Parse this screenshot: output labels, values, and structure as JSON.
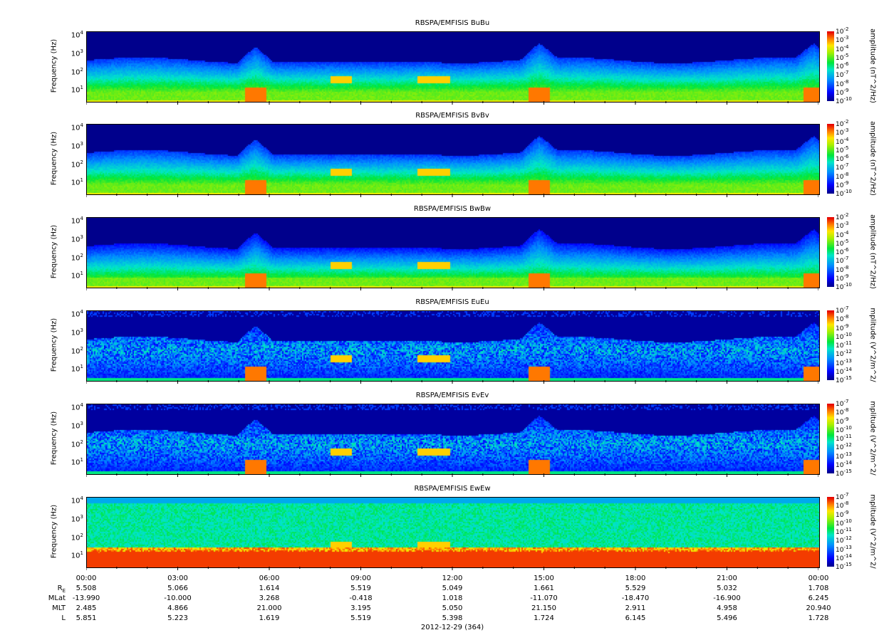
{
  "panels": [
    {
      "title": "RBSPA/EMFISIS  BuBu",
      "ylabel": "Frequency (Hz)",
      "cbar_label": "amplitude (nT^2/Hz)",
      "cbar_ticks": [
        "-2",
        "-3",
        "-4",
        "-5",
        "-6",
        "-7",
        "-8",
        "-9",
        "-10"
      ],
      "kind": "B"
    },
    {
      "title": "RBSPA/EMFISIS  BvBv",
      "ylabel": "Frequency (Hz)",
      "cbar_label": "amplitude (nT^2/Hz)",
      "cbar_ticks": [
        "-2",
        "-3",
        "-4",
        "-5",
        "-6",
        "-7",
        "-8",
        "-9",
        "-10"
      ],
      "kind": "B"
    },
    {
      "title": "RBSPA/EMFISIS  BwBw",
      "ylabel": "Frequency (Hz)",
      "cbar_label": "amplitude (nT^2/Hz)",
      "cbar_ticks": [
        "-2",
        "-3",
        "-4",
        "-5",
        "-6",
        "-7",
        "-8",
        "-9",
        "-10"
      ],
      "kind": "Bw"
    },
    {
      "title": "RBSPA/EMFISIS  EuEu",
      "ylabel": "Frequency (Hz)",
      "cbar_label": "mplitude (V^2/m^2/",
      "cbar_ticks": [
        "-7",
        "-8",
        "-9",
        "-10",
        "-11",
        "-12",
        "-13",
        "-14",
        "-15"
      ],
      "kind": "E"
    },
    {
      "title": "RBSPA/EMFISIS  EvEv",
      "ylabel": "Frequency (Hz)",
      "cbar_label": "mplitude (V^2/m^2/",
      "cbar_ticks": [
        "-7",
        "-8",
        "-9",
        "-10",
        "-11",
        "-12",
        "-13",
        "-14",
        "-15"
      ],
      "kind": "E"
    },
    {
      "title": "RBSPA/EMFISIS  EwEw",
      "ylabel": "Frequency (Hz)",
      "cbar_label": "mplitude (V^2/m^2/",
      "cbar_ticks": [
        "-7",
        "-8",
        "-9",
        "-10",
        "-11",
        "-12",
        "-13",
        "-14",
        "-15"
      ],
      "kind": "Ew"
    }
  ],
  "chart_data": {
    "type": "heatmap",
    "yscale": "log",
    "y_ticks": [
      "10",
      "10",
      "10",
      "10"
    ],
    "y_tick_exponents": [
      "4",
      "3",
      "2",
      "1"
    ],
    "y_tick_values": [
      10000,
      1000,
      100,
      10
    ],
    "x_ticks": [
      "00:00",
      "03:00",
      "06:00",
      "09:00",
      "12:00",
      "15:00",
      "18:00",
      "21:00",
      "00:00"
    ],
    "x_tick_hours": [
      0,
      3,
      6,
      9,
      12,
      15,
      18,
      21,
      24
    ],
    "date_label": "2012-12-29 (364)",
    "ephemeris": [
      {
        "label": "R",
        "sub": "E",
        "values": [
          "5.508",
          "5.066",
          "1.614",
          "5.519",
          "5.049",
          "1.661",
          "5.529",
          "5.032",
          "1.708"
        ]
      },
      {
        "label": "MLat",
        "sub": "",
        "values": [
          "-13.990",
          "-10.000",
          "3.268",
          "-0.418",
          "1.018",
          "-11.070",
          "-18.470",
          "-16.900",
          "6.245"
        ]
      },
      {
        "label": "MLT",
        "sub": "",
        "values": [
          "2.485",
          "4.866",
          "21.000",
          "3.195",
          "5.050",
          "21.150",
          "2.911",
          "4.958",
          "20.940"
        ]
      },
      {
        "label": "L",
        "sub": "",
        "values": [
          "5.851",
          "5.223",
          "1.619",
          "5.519",
          "5.398",
          "1.724",
          "6.145",
          "5.496",
          "1.728"
        ]
      }
    ]
  }
}
